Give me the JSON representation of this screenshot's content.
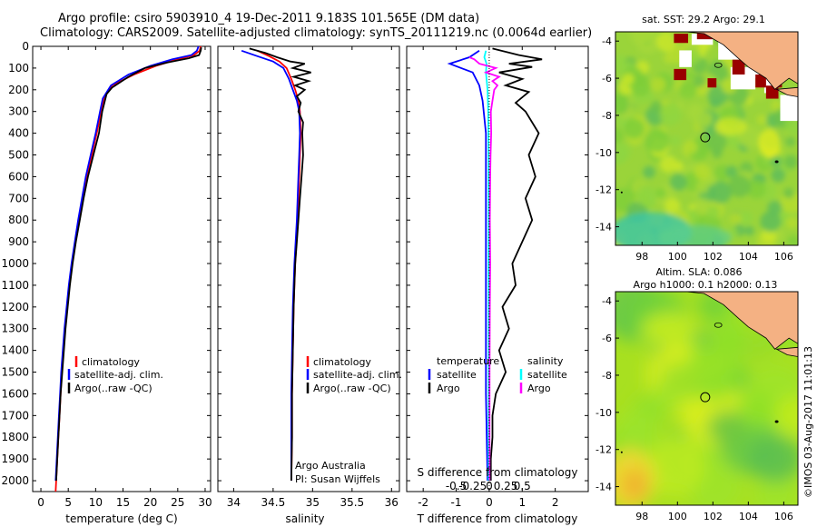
{
  "header": {
    "line1": "Argo profile: csiro 5903910_4 19-Dec-2011 9.183S 101.565E (DM data)",
    "line2": "Climatology: CARS2009. Satellite-adjusted climatology: synTS_20111219.nc (0.0064d earlier)"
  },
  "footer": {
    "credit1": "Argo Australia",
    "credit2": "PI: Susan Wijffels",
    "stamp": "©IMOS 03-Aug-2017 11:01:13"
  },
  "colors": {
    "climatology": "#ff0000",
    "satellite": "#0000ff",
    "argo": "#000000",
    "sal_sat": "#00ffff",
    "sal_argo": "#ff00ff",
    "land": "#f4b183"
  },
  "chart_data": [
    {
      "type": "line",
      "id": "temperature",
      "xlabel": "temperature (deg C)",
      "ylabel": "",
      "xlim": [
        -1.5,
        31
      ],
      "ylim": [
        2050,
        0
      ],
      "xticks": [
        0,
        5,
        10,
        15,
        20,
        25,
        30
      ],
      "yticks": [
        0,
        100,
        200,
        300,
        400,
        500,
        600,
        700,
        800,
        900,
        1000,
        1100,
        1200,
        1300,
        1400,
        1500,
        1600,
        1700,
        1800,
        1900,
        2000
      ],
      "legend": [
        "climatology",
        "satellite-adj. clim.",
        "Argo(..raw -QC)"
      ],
      "series": [
        {
          "name": "climatology",
          "color": "#ff0000",
          "points": [
            [
              29.2,
              0
            ],
            [
              29,
              20
            ],
            [
              28,
              40
            ],
            [
              25,
              60
            ],
            [
              21,
              90
            ],
            [
              17,
              130
            ],
            [
              13,
              180
            ],
            [
              11.5,
              240
            ],
            [
              11,
              300
            ],
            [
              10.2,
              400
            ],
            [
              9.3,
              500
            ],
            [
              8.4,
              600
            ],
            [
              7.6,
              700
            ],
            [
              6.9,
              800
            ],
            [
              6.3,
              900
            ],
            [
              5.7,
              1000
            ],
            [
              5.2,
              1100
            ],
            [
              4.8,
              1200
            ],
            [
              4.4,
              1300
            ],
            [
              4.1,
              1400
            ],
            [
              3.8,
              1500
            ],
            [
              3.6,
              1600
            ],
            [
              3.4,
              1700
            ],
            [
              3.2,
              1800
            ],
            [
              3.0,
              1900
            ],
            [
              2.8,
              2000
            ],
            [
              2.7,
              2050
            ]
          ]
        },
        {
          "name": "satellite",
          "color": "#0000ff",
          "points": [
            [
              28.8,
              0
            ],
            [
              28.5,
              20
            ],
            [
              27.5,
              40
            ],
            [
              24,
              60
            ],
            [
              20,
              90
            ],
            [
              16,
              130
            ],
            [
              12.8,
              180
            ],
            [
              11.3,
              240
            ],
            [
              10.8,
              300
            ],
            [
              10,
              400
            ],
            [
              9.1,
              500
            ],
            [
              8.2,
              600
            ],
            [
              7.5,
              700
            ],
            [
              6.8,
              800
            ],
            [
              6.2,
              900
            ],
            [
              5.6,
              1000
            ],
            [
              5.1,
              1100
            ],
            [
              4.7,
              1200
            ],
            [
              4.3,
              1300
            ],
            [
              4,
              1400
            ],
            [
              3.7,
              1500
            ],
            [
              3.5,
              1600
            ],
            [
              3.3,
              1700
            ],
            [
              3.1,
              1800
            ],
            [
              2.9,
              1900
            ],
            [
              2.7,
              2000
            ]
          ]
        },
        {
          "name": "Argo",
          "color": "#000000",
          "points": [
            [
              29.3,
              5
            ],
            [
              29.2,
              20
            ],
            [
              28.9,
              40
            ],
            [
              27,
              55
            ],
            [
              23,
              75
            ],
            [
              19,
              100
            ],
            [
              16,
              140
            ],
            [
              13,
              190
            ],
            [
              12,
              220
            ],
            [
              11.6,
              260
            ],
            [
              11.2,
              300
            ],
            [
              10.6,
              400
            ],
            [
              9.6,
              500
            ],
            [
              8.6,
              600
            ],
            [
              7.8,
              700
            ],
            [
              7.1,
              800
            ],
            [
              6.4,
              900
            ],
            [
              5.8,
              1000
            ],
            [
              5.3,
              1100
            ],
            [
              4.9,
              1200
            ],
            [
              4.5,
              1300
            ],
            [
              4.2,
              1400
            ],
            [
              3.9,
              1500
            ],
            [
              3.6,
              1600
            ],
            [
              3.4,
              1700
            ],
            [
              3.2,
              1800
            ],
            [
              3,
              1900
            ],
            [
              2.8,
              2000
            ]
          ]
        }
      ]
    },
    {
      "type": "line",
      "id": "salinity",
      "xlabel": "salinity",
      "ylabel": "",
      "xlim": [
        33.8,
        36.1
      ],
      "ylim": [
        2050,
        0
      ],
      "xticks": [
        34,
        34.5,
        35,
        35.5,
        36
      ],
      "xticklabels": [
        "34",
        "34.5",
        "35",
        "35.5",
        "36"
      ],
      "legend": [
        "climatology",
        "satellite-adj. clim.",
        "Argo(..raw -QC)"
      ],
      "series": [
        {
          "name": "climatology",
          "color": "#ff0000",
          "points": [
            [
              34.3,
              20
            ],
            [
              34.45,
              45
            ],
            [
              34.58,
              70
            ],
            [
              34.67,
              100
            ],
            [
              34.73,
              150
            ],
            [
              34.78,
              200
            ],
            [
              34.82,
              250
            ],
            [
              34.84,
              300
            ],
            [
              34.85,
              400
            ],
            [
              34.84,
              500
            ],
            [
              34.83,
              600
            ],
            [
              34.81,
              800
            ],
            [
              34.78,
              1000
            ],
            [
              34.76,
              1200
            ],
            [
              34.75,
              1400
            ],
            [
              34.74,
              1600
            ],
            [
              34.74,
              1800
            ],
            [
              34.73,
              2000
            ]
          ]
        },
        {
          "name": "satellite",
          "color": "#0000ff",
          "points": [
            [
              34.1,
              20
            ],
            [
              34.3,
              45
            ],
            [
              34.5,
              70
            ],
            [
              34.63,
              100
            ],
            [
              34.7,
              150
            ],
            [
              34.75,
              200
            ],
            [
              34.8,
              250
            ],
            [
              34.83,
              300
            ],
            [
              34.84,
              400
            ],
            [
              34.83,
              500
            ],
            [
              34.82,
              600
            ],
            [
              34.8,
              800
            ],
            [
              34.77,
              1000
            ],
            [
              34.75,
              1200
            ],
            [
              34.74,
              1400
            ],
            [
              34.73,
              1600
            ],
            [
              34.73,
              1800
            ],
            [
              34.73,
              2000
            ]
          ]
        },
        {
          "name": "Argo",
          "color": "#000000",
          "points": [
            [
              34.2,
              10
            ],
            [
              34.4,
              30
            ],
            [
              34.55,
              50
            ],
            [
              34.72,
              70
            ],
            [
              34.9,
              80
            ],
            [
              34.75,
              100
            ],
            [
              34.98,
              120
            ],
            [
              34.76,
              140
            ],
            [
              34.95,
              160
            ],
            [
              34.78,
              180
            ],
            [
              34.9,
              200
            ],
            [
              34.8,
              230
            ],
            [
              34.85,
              260
            ],
            [
              34.82,
              300
            ],
            [
              34.88,
              350
            ],
            [
              34.87,
              400
            ],
            [
              34.88,
              500
            ],
            [
              34.86,
              600
            ],
            [
              34.84,
              700
            ],
            [
              34.82,
              800
            ],
            [
              34.8,
              900
            ],
            [
              34.78,
              1000
            ],
            [
              34.77,
              1100
            ],
            [
              34.76,
              1200
            ],
            [
              34.75,
              1400
            ],
            [
              34.74,
              1600
            ],
            [
              34.74,
              1800
            ],
            [
              34.73,
              2000
            ]
          ]
        }
      ]
    },
    {
      "type": "line",
      "id": "differences",
      "xlabel": "T difference from climatology",
      "xlabel_top": "S difference from climatology",
      "xlim": [
        -2.5,
        3
      ],
      "ylim": [
        2050,
        0
      ],
      "xticks_T": [
        -2,
        -1,
        0,
        1,
        2
      ],
      "xticks_S": [
        -0.5,
        -0.25,
        0,
        0.25,
        0.5
      ],
      "xticklabels_S": [
        "-0.5",
        "-0.25",
        "0",
        "0.25",
        "0.5"
      ],
      "legend_left": {
        "title": "temperature",
        "items": [
          "satellite",
          "Argo"
        ]
      },
      "legend_right": {
        "title": "salinity",
        "items": [
          "satellite",
          "Argo"
        ]
      },
      "series": [
        {
          "name": "T satellite",
          "color": "#0000ff",
          "points": [
            [
              -0.3,
              20
            ],
            [
              -0.6,
              50
            ],
            [
              -1.2,
              80
            ],
            [
              -0.5,
              120
            ],
            [
              -0.3,
              180
            ],
            [
              -0.2,
              250
            ],
            [
              -0.1,
              400
            ],
            [
              -0.1,
              800
            ],
            [
              -0.1,
              1200
            ],
            [
              -0.1,
              1600
            ],
            [
              -0.05,
              2000
            ]
          ]
        },
        {
          "name": "T Argo",
          "color": "#000000",
          "points": [
            [
              0.1,
              10
            ],
            [
              0.9,
              40
            ],
            [
              1.6,
              60
            ],
            [
              0.6,
              80
            ],
            [
              1.3,
              95
            ],
            [
              0.3,
              120
            ],
            [
              1.0,
              150
            ],
            [
              0.5,
              180
            ],
            [
              1.2,
              210
            ],
            [
              0.8,
              260
            ],
            [
              1.1,
              300
            ],
            [
              1.5,
              400
            ],
            [
              1.2,
              500
            ],
            [
              1.4,
              600
            ],
            [
              1.1,
              700
            ],
            [
              1.3,
              800
            ],
            [
              1.0,
              900
            ],
            [
              0.7,
              1000
            ],
            [
              0.8,
              1100
            ],
            [
              0.4,
              1200
            ],
            [
              0.6,
              1300
            ],
            [
              0.3,
              1400
            ],
            [
              0.5,
              1500
            ],
            [
              0.2,
              1600
            ],
            [
              0.1,
              1700
            ],
            [
              0.1,
              1800
            ],
            [
              0.05,
              1900
            ],
            [
              0.05,
              2000
            ]
          ]
        },
        {
          "name": "S satellite",
          "color": "#00ffff",
          "points": [
            [
              -0.1,
              20
            ],
            [
              -0.15,
              50
            ],
            [
              -0.08,
              80
            ],
            [
              -0.1,
              120
            ],
            [
              -0.05,
              200
            ],
            [
              -0.03,
              300
            ],
            [
              -0.02,
              500
            ],
            [
              -0.02,
              1000
            ],
            [
              -0.02,
              1500
            ],
            [
              -0.02,
              2000
            ]
          ]
        },
        {
          "name": "S Argo",
          "color": "#ff00ff",
          "points": [
            [
              -0.6,
              50
            ],
            [
              -0.45,
              60
            ],
            [
              -0.3,
              80
            ],
            [
              0.2,
              100
            ],
            [
              -0.1,
              120
            ],
            [
              0.3,
              140
            ],
            [
              0.1,
              160
            ],
            [
              0.25,
              180
            ],
            [
              0.15,
              200
            ],
            [
              0.1,
              250
            ],
            [
              0.05,
              300
            ],
            [
              0.06,
              400
            ],
            [
              0.04,
              500
            ],
            [
              0.03,
              600
            ],
            [
              0.02,
              800
            ],
            [
              0.03,
              1000
            ],
            [
              0.02,
              1200
            ],
            [
              0.01,
              1500
            ],
            [
              0.01,
              2000
            ]
          ]
        }
      ]
    },
    {
      "type": "heatmap",
      "id": "sst_map",
      "title": "sat. SST: 29.2 Argo: 29.1",
      "xlim": [
        96.5,
        106.8
      ],
      "ylim": [
        -15,
        -3.5
      ],
      "xticks": [
        98,
        100,
        102,
        104,
        106
      ],
      "yticks": [
        -4,
        -6,
        -8,
        -10,
        -12,
        -14
      ],
      "argo_position": [
        101.565,
        -9.183
      ]
    },
    {
      "type": "heatmap",
      "id": "sla_map",
      "title_line1": "Altim. SLA: 0.086",
      "title_line2": "Argo h1000: 0.1 h2000: 0.13",
      "xlim": [
        96.5,
        106.8
      ],
      "ylim": [
        -15,
        -3.5
      ],
      "xticks": [
        98,
        100,
        102,
        104,
        106
      ],
      "yticks": [
        -4,
        -6,
        -8,
        -10,
        -12,
        -14
      ],
      "argo_position": [
        101.565,
        -9.183
      ]
    }
  ]
}
